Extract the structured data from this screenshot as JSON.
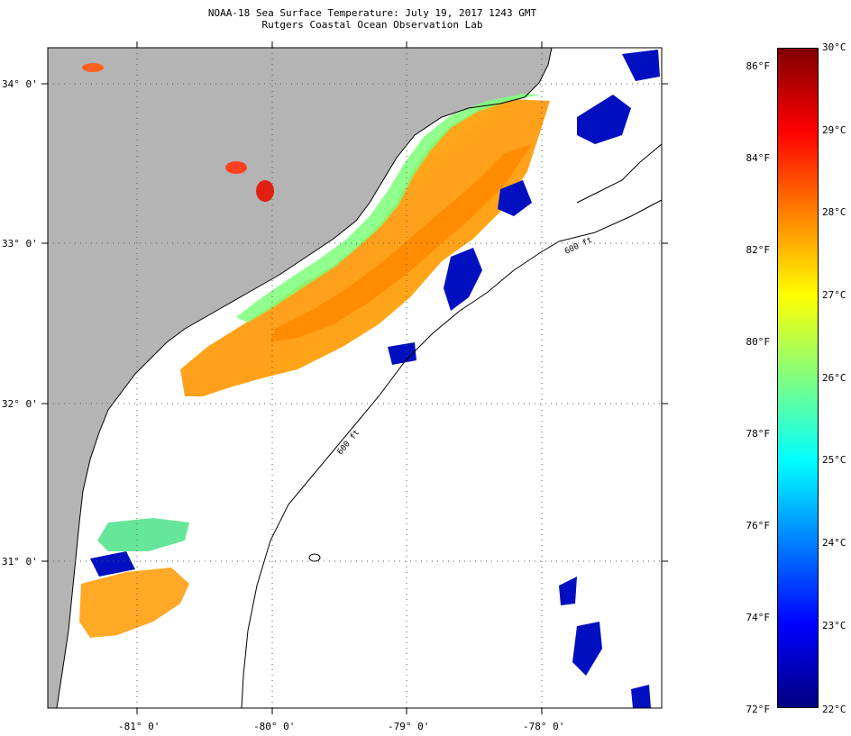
{
  "title": {
    "line1": "NOAA-18 Sea Surface Temperature:  July 19, 2017 1243 GMT",
    "line2": "Rutgers Coastal Ocean Observation Lab"
  },
  "map": {
    "lat_labels": [
      "34° 0'",
      "33° 0'",
      "32° 0'",
      "31° 0'"
    ],
    "lon_labels": [
      "-81° 0'",
      "-80° 0'",
      "-79° 0'",
      "-78° 0'"
    ],
    "isobath_label_upper": "600 ft",
    "isobath_label_lower": "600 ft",
    "colors": {
      "land": "#b4b4b4",
      "cloud": "#ffffff",
      "coast": "#000000"
    }
  },
  "colorbar": {
    "fahrenheit": [
      "86°F",
      "84°F",
      "82°F",
      "80°F",
      "78°F",
      "76°F",
      "74°F"
    ],
    "celsius": [
      "29°C",
      "28°C",
      "27°C",
      "26°C",
      "25°C",
      "24°C",
      "23°C"
    ],
    "top_c": "30°C",
    "bottom_f": "72°F",
    "bottom_c": "22°C",
    "stops": [
      "#000080",
      "#0000ff",
      "#0080ff",
      "#00ffff",
      "#80ff80",
      "#ffff00",
      "#ff8000",
      "#ff0000",
      "#800000"
    ]
  }
}
